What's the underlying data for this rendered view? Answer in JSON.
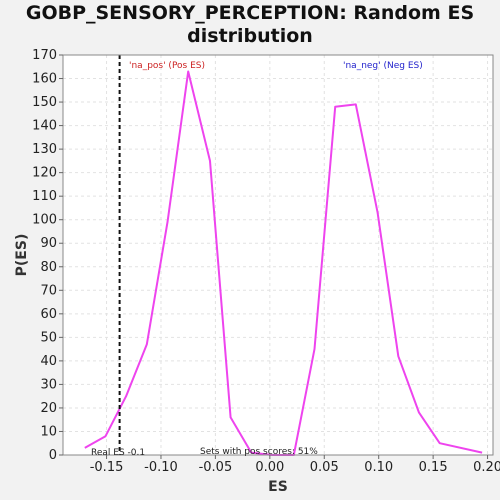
{
  "chart_data": {
    "type": "line",
    "title_line1": "GOBP_SENSORY_PERCEPTION: Random ES",
    "title_line2": "distribution",
    "xlabel": "ES",
    "ylabel": "P(ES)",
    "xlim": [
      -0.19,
      0.205
    ],
    "ylim": [
      0,
      170
    ],
    "x_ticks": [
      -0.15,
      -0.1,
      -0.05,
      0.0,
      0.05,
      0.1,
      0.15,
      0.2
    ],
    "x_tick_labels": [
      "-0.15",
      "-0.10",
      "-0.05",
      "0.00",
      "0.05",
      "0.10",
      "0.15",
      "0.20"
    ],
    "y_ticks": [
      0,
      10,
      20,
      30,
      40,
      50,
      60,
      70,
      80,
      90,
      100,
      110,
      120,
      130,
      140,
      150,
      160,
      170
    ],
    "grid": true,
    "series": [
      {
        "name": "na_pos",
        "color": "#ee44ee",
        "points": [
          [
            -0.17,
            3
          ],
          [
            -0.151,
            8
          ],
          [
            -0.132,
            25
          ],
          [
            -0.113,
            47
          ],
          [
            -0.094,
            99
          ],
          [
            -0.075,
            163
          ],
          [
            -0.055,
            125
          ],
          [
            -0.036,
            16
          ],
          [
            -0.017,
            1
          ],
          [
            0.002,
            0
          ],
          [
            0.022,
            0
          ],
          [
            0.041,
            45
          ],
          [
            0.06,
            148
          ],
          [
            0.079,
            149
          ],
          [
            0.099,
            103
          ],
          [
            0.118,
            42
          ],
          [
            0.137,
            18
          ],
          [
            0.156,
            5
          ],
          [
            0.195,
            1
          ]
        ]
      }
    ],
    "real_es": {
      "x": -0.138,
      "label": "Real ES -0.1"
    },
    "annotations": {
      "pos_label": "'na_pos' (Pos ES)",
      "pos_color": "#cc2222",
      "neg_label": "'na_neg' (Neg ES)",
      "neg_color": "#2222cc",
      "sets_text": "Sets with pos scores: 51%"
    }
  }
}
